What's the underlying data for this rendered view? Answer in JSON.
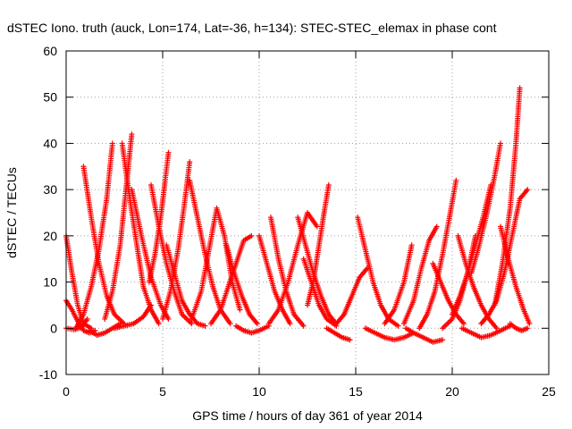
{
  "chart_data": {
    "type": "scatter",
    "title": "dSTEC Iono. truth (auck, Lon=174, Lat=-36, h=134): STEC-STEC_elemax in phase cont",
    "xlabel": "GPS time / hours of day 361 of year 2014",
    "ylabel": "dSTEC  / TECUs",
    "xlim": [
      0,
      25
    ],
    "ylim": [
      -10,
      60
    ],
    "x_ticks": [
      0,
      5,
      10,
      15,
      20,
      25
    ],
    "y_ticks": [
      -10,
      0,
      10,
      20,
      30,
      40,
      50,
      60
    ],
    "grid": true,
    "marker": "+",
    "color": "#ff0000",
    "series": [
      {
        "x": [
          0.0,
          0.3,
          0.6,
          0.9,
          1.3
        ],
        "y": [
          20,
          12,
          5,
          1,
          0
        ]
      },
      {
        "x": [
          0.0,
          0.3,
          0.6,
          0.9,
          1.2,
          1.5
        ],
        "y": [
          6,
          4,
          1.5,
          -0.5,
          -1,
          -0.5
        ]
      },
      {
        "x": [
          0.0,
          0.4,
          0.8,
          1.1
        ],
        "y": [
          0,
          -0.3,
          0.2,
          2
        ]
      },
      {
        "x": [
          0.5,
          0.9,
          1.3,
          1.7,
          2.1,
          2.4
        ],
        "y": [
          0,
          3,
          9,
          17,
          28,
          40
        ]
      },
      {
        "x": [
          0.9,
          1.3,
          1.7,
          2.1,
          2.5,
          3.0
        ],
        "y": [
          35,
          24,
          14,
          7,
          3,
          1
        ]
      },
      {
        "x": [
          1.2,
          1.6,
          2.0,
          2.4,
          2.8
        ],
        "y": [
          -0.5,
          -1.5,
          -1,
          0,
          1
        ]
      },
      {
        "x": [
          2.0,
          2.4,
          2.8,
          3.1,
          3.4
        ],
        "y": [
          2,
          8,
          18,
          30,
          42
        ]
      },
      {
        "x": [
          2.9,
          3.3,
          3.7,
          4.0,
          4.4,
          4.8
        ],
        "y": [
          40,
          28,
          17,
          9,
          4,
          1
        ]
      },
      {
        "x": [
          3.4,
          3.9,
          4.4,
          4.9,
          5.3
        ],
        "y": [
          30,
          20,
          11,
          5,
          2
        ]
      },
      {
        "x": [
          2.5,
          3.0,
          3.5,
          4.0,
          4.4
        ],
        "y": [
          0,
          0.5,
          1,
          2.5,
          5
        ]
      },
      {
        "x": [
          4.3,
          4.6,
          4.9,
          5.1,
          5.3
        ],
        "y": [
          10,
          16,
          24,
          31,
          38
        ]
      },
      {
        "x": [
          4.4,
          4.8,
          5.2,
          5.6,
          6.0,
          6.5
        ],
        "y": [
          31,
          22,
          14,
          8,
          3,
          1
        ]
      },
      {
        "x": [
          5.0,
          5.4,
          5.8,
          6.1,
          6.4
        ],
        "y": [
          2,
          8,
          17,
          26,
          36
        ]
      },
      {
        "x": [
          5.2,
          5.6,
          6.0,
          6.4,
          6.8,
          7.2
        ],
        "y": [
          18,
          12,
          6,
          3,
          1,
          0.5
        ]
      },
      {
        "x": [
          6.4,
          6.8,
          7.2,
          7.6,
          8.0,
          8.5
        ],
        "y": [
          32,
          24,
          16,
          9,
          4,
          1
        ]
      },
      {
        "x": [
          6.5,
          7.0,
          7.4,
          7.8,
          8.2,
          8.6,
          9.0
        ],
        "y": [
          2,
          8,
          17,
          26,
          20,
          10,
          4
        ]
      },
      {
        "x": [
          7.5,
          8.0,
          8.4,
          8.8,
          9.2,
          9.6
        ],
        "y": [
          1,
          4,
          9,
          14,
          19,
          20
        ]
      },
      {
        "x": [
          8.3,
          8.7,
          9.1,
          9.5,
          9.9
        ],
        "y": [
          18,
          12,
          7,
          3,
          1
        ]
      },
      {
        "x": [
          8.8,
          9.2,
          9.6,
          10.0,
          10.5
        ],
        "y": [
          0.5,
          -0.5,
          -1,
          -0.5,
          0.5
        ]
      },
      {
        "x": [
          10.0,
          10.4,
          10.8,
          11.2,
          11.6
        ],
        "y": [
          20,
          14,
          8,
          4,
          1
        ]
      },
      {
        "x": [
          10.6,
          11.0,
          11.4,
          11.8,
          12.3
        ],
        "y": [
          24,
          15,
          8,
          3,
          0.5
        ]
      },
      {
        "x": [
          10.5,
          11.0,
          11.5,
          12.0,
          12.5,
          13.0
        ],
        "y": [
          1,
          4,
          10,
          18,
          25,
          22
        ]
      },
      {
        "x": [
          12.0,
          12.4,
          12.8,
          13.2,
          13.6,
          14.0
        ],
        "y": [
          24,
          18,
          12,
          7,
          3,
          1
        ]
      },
      {
        "x": [
          12.3,
          12.7,
          13.1,
          13.5,
          14.0
        ],
        "y": [
          15,
          10,
          5,
          2,
          0.5
        ]
      },
      {
        "x": [
          12.5,
          12.8,
          13.1,
          13.4,
          13.6
        ],
        "y": [
          5,
          10,
          18,
          26,
          31
        ]
      },
      {
        "x": [
          13.5,
          13.9,
          14.3,
          14.7
        ],
        "y": [
          0,
          -1,
          -2,
          -2.5
        ]
      },
      {
        "x": [
          14.0,
          14.4,
          14.8,
          15.2,
          15.6
        ],
        "y": [
          1,
          3,
          7,
          11,
          13
        ]
      },
      {
        "x": [
          15.1,
          15.5,
          15.9,
          16.3,
          16.7,
          17.2
        ],
        "y": [
          24,
          17,
          10,
          5,
          2,
          0.5
        ]
      },
      {
        "x": [
          15.5,
          16.0,
          16.5,
          17.0,
          17.5,
          18.0
        ],
        "y": [
          0,
          -1,
          -2,
          -2.5,
          -2,
          -1
        ]
      },
      {
        "x": [
          16.5,
          17.0,
          17.5,
          17.9
        ],
        "y": [
          1,
          4,
          10,
          18
        ]
      },
      {
        "x": [
          17.5,
          18.0,
          18.4,
          18.8,
          19.2
        ],
        "y": [
          1,
          6,
          13,
          19,
          22
        ]
      },
      {
        "x": [
          17.6,
          18.0,
          18.5,
          19.0,
          19.5
        ],
        "y": [
          0,
          -1,
          -2,
          -3,
          -2.5
        ]
      },
      {
        "x": [
          18.3,
          18.7,
          19.1,
          19.5,
          19.9,
          20.2
        ],
        "y": [
          0,
          3,
          8,
          16,
          25,
          32
        ]
      },
      {
        "x": [
          19.0,
          19.4,
          19.8,
          20.2,
          20.6
        ],
        "y": [
          14,
          10,
          6,
          3,
          1
        ]
      },
      {
        "x": [
          19.5,
          20.0,
          20.4,
          20.8,
          21.2
        ],
        "y": [
          0,
          2,
          6,
          12,
          20
        ]
      },
      {
        "x": [
          20.0,
          20.4,
          20.8,
          21.2,
          21.6,
          22.0
        ],
        "y": [
          3,
          7,
          12,
          18,
          24,
          31
        ]
      },
      {
        "x": [
          20.3,
          20.7,
          21.1,
          21.5,
          21.9,
          22.3
        ],
        "y": [
          20,
          14,
          9,
          5,
          2,
          0
        ]
      },
      {
        "x": [
          20.5,
          21.0,
          21.5,
          22.0,
          22.5,
          23.0
        ],
        "y": [
          0,
          -1,
          -2,
          -1.5,
          -0.5,
          0.5
        ]
      },
      {
        "x": [
          21.0,
          21.4,
          21.8,
          22.2,
          22.5
        ],
        "y": [
          12,
          18,
          25,
          33,
          40
        ]
      },
      {
        "x": [
          21.5,
          21.9,
          22.3,
          22.7,
          23.1,
          23.5,
          23.9
        ],
        "y": [
          1,
          3,
          6,
          12,
          20,
          28,
          30
        ]
      },
      {
        "x": [
          22.2,
          22.6,
          23.0,
          23.3,
          23.5
        ],
        "y": [
          5,
          14,
          26,
          40,
          52
        ]
      },
      {
        "x": [
          22.5,
          22.9,
          23.3,
          23.7,
          24.0
        ],
        "y": [
          22,
          15,
          9,
          4,
          1
        ]
      },
      {
        "x": [
          23.0,
          23.3,
          23.6,
          23.9
        ],
        "y": [
          1,
          0,
          -0.5,
          0
        ]
      }
    ]
  }
}
